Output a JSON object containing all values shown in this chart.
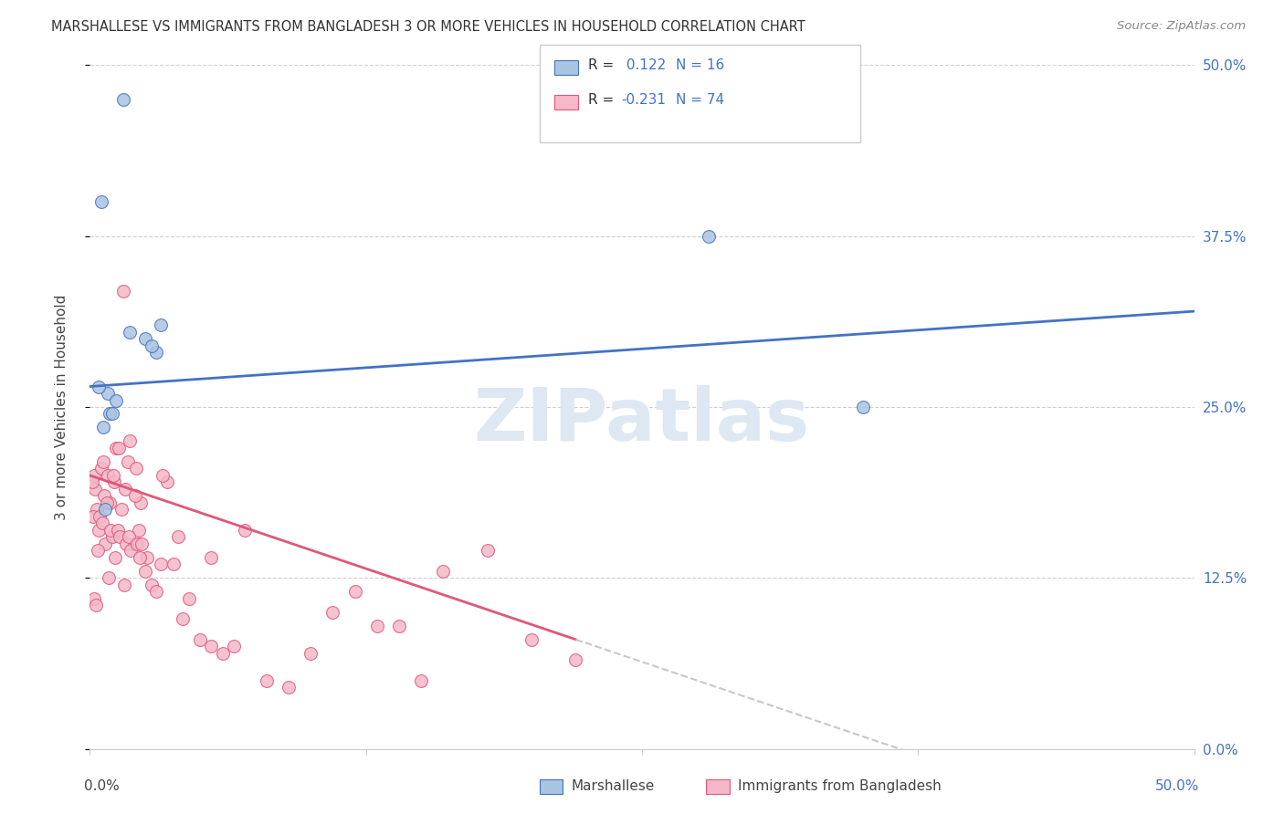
{
  "title": "MARSHALLESE VS IMMIGRANTS FROM BANGLADESH 3 OR MORE VEHICLES IN HOUSEHOLD CORRELATION CHART",
  "source": "Source: ZipAtlas.com",
  "ylabel": "3 or more Vehicles in Household",
  "ytick_labels": [
    "50.0%",
    "37.5%",
    "25.0%",
    "12.5%",
    "0.0%"
  ],
  "ytick_values": [
    50.0,
    37.5,
    25.0,
    12.5,
    0.0
  ],
  "xlim": [
    0.0,
    50.0
  ],
  "ylim": [
    0.0,
    50.0
  ],
  "legend_label1": "Marshallese",
  "legend_label2": "Immigrants from Bangladesh",
  "R1": "0.122",
  "N1": "16",
  "R2": "-0.231",
  "N2": "74",
  "blue_color": "#a8c4e0",
  "blue_dark": "#4472c4",
  "pink_color": "#f4b8c8",
  "line_blue": "#4472c4",
  "line_pink": "#e05878",
  "marshallese_x": [
    1.5,
    0.5,
    0.8,
    2.5,
    3.2,
    3.0,
    2.8,
    0.4,
    0.6,
    0.9,
    1.0,
    1.2,
    28.0,
    35.0,
    0.7,
    1.8
  ],
  "marshallese_y": [
    47.5,
    40.0,
    26.0,
    30.0,
    31.0,
    29.0,
    29.5,
    26.5,
    23.5,
    24.5,
    24.5,
    25.5,
    37.5,
    25.0,
    17.5,
    30.5
  ],
  "bangladesh_x": [
    0.2,
    0.3,
    0.4,
    0.5,
    0.6,
    0.7,
    0.8,
    0.9,
    1.0,
    1.1,
    1.2,
    1.3,
    1.5,
    1.6,
    1.7,
    1.8,
    2.0,
    2.1,
    2.2,
    2.3,
    2.5,
    2.6,
    2.8,
    3.0,
    3.2,
    3.5,
    3.8,
    4.0,
    4.2,
    4.5,
    5.0,
    5.5,
    6.0,
    6.5,
    7.0,
    8.0,
    9.0,
    10.0,
    12.0,
    14.0,
    16.0,
    18.0,
    0.15,
    0.25,
    0.35,
    0.45,
    0.55,
    0.65,
    0.75,
    0.85,
    0.95,
    1.05,
    1.15,
    1.25,
    1.35,
    1.45,
    1.55,
    1.65,
    1.75,
    1.85,
    2.05,
    2.15,
    2.25,
    2.35,
    0.1,
    0.18,
    0.28,
    3.3,
    11.0,
    22.0,
    5.5,
    13.0,
    15.0,
    20.0
  ],
  "bangladesh_y": [
    20.0,
    17.5,
    16.0,
    20.5,
    21.0,
    15.0,
    20.0,
    18.0,
    15.5,
    19.5,
    22.0,
    22.0,
    33.5,
    19.0,
    21.0,
    22.5,
    15.0,
    20.5,
    16.0,
    18.0,
    13.0,
    14.0,
    12.0,
    11.5,
    13.5,
    19.5,
    13.5,
    15.5,
    9.5,
    11.0,
    8.0,
    7.5,
    7.0,
    7.5,
    16.0,
    5.0,
    4.5,
    7.0,
    11.5,
    9.0,
    13.0,
    14.5,
    17.0,
    19.0,
    14.5,
    17.0,
    16.5,
    18.5,
    18.0,
    12.5,
    16.0,
    20.0,
    14.0,
    16.0,
    15.5,
    17.5,
    12.0,
    15.0,
    15.5,
    14.5,
    18.5,
    15.0,
    14.0,
    15.0,
    19.5,
    11.0,
    10.5,
    20.0,
    10.0,
    6.5,
    14.0,
    9.0,
    5.0,
    8.0
  ],
  "watermark": "ZIPatlas",
  "background_color": "#ffffff",
  "grid_color": "#d0d0d0",
  "blue_line_y0": 26.5,
  "blue_line_y1": 32.0,
  "pink_line_y0": 20.0,
  "pink_line_y1": 8.0,
  "pink_solid_end_x": 22.0
}
